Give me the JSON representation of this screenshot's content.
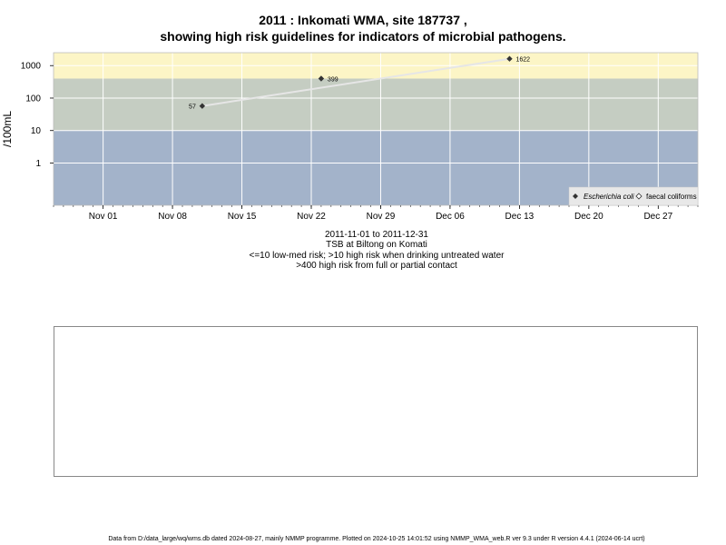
{
  "title_line1": "2011 : Inkomati WMA, site 187737 ,",
  "title_line2": "showing high risk guidelines for indicators of microbial pathogens.",
  "info": {
    "date_range": "2011-11-01 to 2011-12-31",
    "site_desc": "TSB at Biltong on Komati",
    "risk_low": "<=10 low-med risk; >10 high risk when drinking untreated water",
    "risk_high": ">400 high risk from full or partial contact"
  },
  "footer": "Data from D:/data_large/wq/wms.db dated 2024-08-27, mainly NMMP programme. Plotted on 2024-10-25 14:01:52 using NMMP_WMA_web.R ver 9.3 under R version 4.4.1 (2024-06-14 ucrt)",
  "colors": {
    "band_low": "#a3b3ca",
    "band_mid": "#c5cdc2",
    "band_high": "#fcf5c6",
    "grid": "#ffffff",
    "line": "#e6e6e6",
    "point": "#333333"
  },
  "chart_data": {
    "type": "scatter",
    "x_axis": {
      "type": "date",
      "range": [
        "2011-10-27",
        "2011-12-31"
      ],
      "ticks": [
        {
          "date": "2011-11-01",
          "label": "Nov 01"
        },
        {
          "date": "2011-11-08",
          "label": "Nov 08"
        },
        {
          "date": "2011-11-15",
          "label": "Nov 15"
        },
        {
          "date": "2011-11-22",
          "label": "Nov 22"
        },
        {
          "date": "2011-11-29",
          "label": "Nov 29"
        },
        {
          "date": "2011-12-06",
          "label": "Dec 06"
        },
        {
          "date": "2011-12-13",
          "label": "Dec 13"
        },
        {
          "date": "2011-12-20",
          "label": "Dec 20"
        },
        {
          "date": "2011-12-27",
          "label": "Dec 27"
        }
      ]
    },
    "y_axis": {
      "type": "log",
      "label": "/100mL",
      "range": [
        0.05,
        2500
      ],
      "ticks": [
        {
          "value": 1,
          "label": "1"
        },
        {
          "value": 10,
          "label": "10"
        },
        {
          "value": 100,
          "label": "100"
        },
        {
          "value": 1000,
          "label": "1000"
        }
      ]
    },
    "bands": [
      {
        "from": 0.05,
        "to": 10,
        "color": "#a3b3ca"
      },
      {
        "from": 10,
        "to": 400,
        "color": "#c5cdc2"
      },
      {
        "from": 400,
        "to": 2500,
        "color": "#fcf5c6"
      }
    ],
    "series": [
      {
        "name": "Escherichia coli",
        "marker": "filled-diamond",
        "points": [
          {
            "x": "2011-11-11",
            "y": 57,
            "label": "57",
            "label_side": "left"
          },
          {
            "x": "2011-11-23",
            "y": 399,
            "label": "399",
            "label_side": "right"
          },
          {
            "x": "2011-12-12",
            "y": 1622,
            "label": "1622",
            "label_side": "right"
          }
        ]
      },
      {
        "name": "faecal coliforms",
        "marker": "open-diamond",
        "points": []
      }
    ],
    "legend_position": "bottom-right",
    "grid": true
  }
}
